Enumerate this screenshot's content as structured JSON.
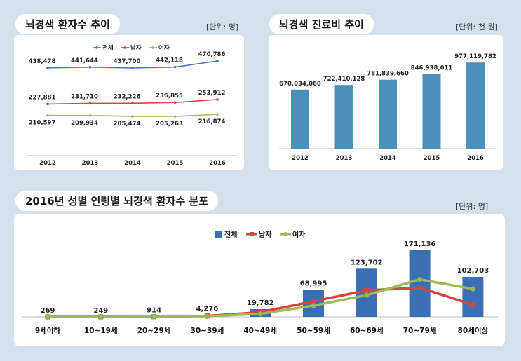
{
  "colors": {
    "total": "#4472c4",
    "male": "#d9423d",
    "female": "#9bbb59",
    "bar_cost": "#4a90b8",
    "bar_age": "#3a6fb4",
    "background": "#d4e1ed"
  },
  "panels": {
    "patients_trend": {
      "title": "뇌경색 환자수 추이",
      "unit": "[단위: 명]"
    },
    "cost_trend": {
      "title": "뇌경색 진료비 추이",
      "unit": "[단위: 천 원]"
    },
    "age_distribution": {
      "title": "2016년 성별 연령별 뇌경색 환자수 분포",
      "unit": "[단위: 명]"
    }
  },
  "chart_data": [
    {
      "type": "line",
      "title": "뇌경색 환자수 추이",
      "unit": "[단위: 명]",
      "x": [
        "2012",
        "2013",
        "2014",
        "2015",
        "2016"
      ],
      "legend_position": "top",
      "series": [
        {
          "name": "전체",
          "values": [
            438478,
            441644,
            437700,
            442118,
            470786
          ],
          "labels": [
            "438,478",
            "441,644",
            "437,700",
            "442,118",
            "470,786"
          ]
        },
        {
          "name": "남자",
          "values": [
            227881,
            231710,
            232226,
            236855,
            253912
          ],
          "labels": [
            "227,881",
            "231,710",
            "232,226",
            "236,855",
            "253,912"
          ]
        },
        {
          "name": "여자",
          "values": [
            210597,
            209934,
            205474,
            205263,
            216874
          ],
          "labels": [
            "210,597",
            "209,934",
            "205,474",
            "205,263",
            "216,874"
          ]
        }
      ]
    },
    {
      "type": "bar",
      "title": "뇌경색 진료비 추이",
      "unit": "[단위: 천 원]",
      "categories": [
        "2012",
        "2013",
        "2014",
        "2015",
        "2016"
      ],
      "values": [
        670034060,
        722410128,
        781839660,
        846938011,
        977119782
      ],
      "labels": [
        "670,034,060",
        "722,410,128",
        "781,839,660",
        "846,938,011",
        "977,119,782"
      ],
      "ylim": [
        0,
        1050000000
      ]
    },
    {
      "type": "bar",
      "title": "2016년 성별 연령별 뇌경색 환자수 분포",
      "unit": "[단위: 명]",
      "legend_position": "top",
      "categories": [
        "9세이하",
        "10~19세",
        "20~29세",
        "30~39세",
        "40~49세",
        "50~59세",
        "60~69세",
        "70~79세",
        "80세이상"
      ],
      "series": [
        {
          "name": "전체",
          "kind": "bar",
          "values": [
            269,
            249,
            914,
            4276,
            19782,
            68995,
            123702,
            171136,
            102703
          ],
          "labels": [
            "269",
            "249",
            "914",
            "4,276",
            "19,782",
            "68,995",
            "123,702",
            "171,136",
            "102,703"
          ]
        },
        {
          "name": "남자",
          "kind": "line",
          "values": [
            140,
            130,
            480,
            2500,
            12000,
            40000,
            68000,
            75000,
            31000
          ]
        },
        {
          "name": "여자",
          "kind": "line",
          "values": [
            129,
            119,
            434,
            1776,
            7782,
            28995,
            55702,
            96136,
            71703
          ]
        }
      ],
      "ylim": [
        0,
        180000
      ]
    }
  ]
}
